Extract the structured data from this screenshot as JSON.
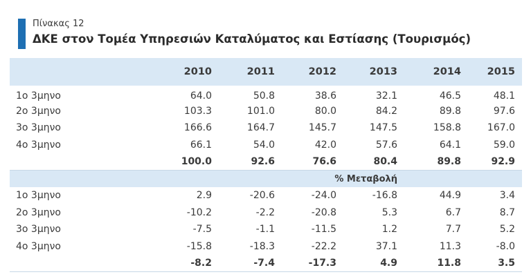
{
  "header": {
    "label": "Πίνακας 12",
    "title": "ΔΚΕ στον Τομέα Υπηρεσιών Καταλύματος και Εστίασης (Τουρισμός)"
  },
  "table": {
    "years": [
      "2010",
      "2011",
      "2012",
      "2013",
      "2014",
      "2015"
    ],
    "index_rows": [
      {
        "label": "1ο 3μηνο",
        "values": [
          "64.0",
          "50.8",
          "38.6",
          "32.1",
          "46.5",
          "48.1"
        ]
      },
      {
        "label": "2ο 3μηνο",
        "values": [
          "103.3",
          "101.0",
          "80.0",
          "84.2",
          "89.8",
          "97.6"
        ]
      },
      {
        "label": "3ο 3μηνο",
        "values": [
          "166.6",
          "164.7",
          "145.7",
          "147.5",
          "158.8",
          "167.0"
        ]
      },
      {
        "label": "4ο 3μηνο",
        "values": [
          "66.1",
          "54.0",
          "42.0",
          "57.6",
          "64.1",
          "59.0"
        ]
      }
    ],
    "index_total": [
      "100.0",
      "92.6",
      "76.6",
      "80.4",
      "89.8",
      "92.9"
    ],
    "change_section_label": "% Μεταβολή",
    "change_rows": [
      {
        "label": "1ο 3μηνο",
        "values": [
          "2.9",
          "-20.6",
          "-24.0",
          "-16.8",
          "44.9",
          "3.4"
        ]
      },
      {
        "label": "2ο 3μηνο",
        "values": [
          "-10.2",
          "-2.2",
          "-20.8",
          "5.3",
          "6.7",
          "8.7"
        ]
      },
      {
        "label": "3ο 3μηνο",
        "values": [
          "-7.5",
          "-1.1",
          "-11.5",
          "1.2",
          "7.7",
          "5.2"
        ]
      },
      {
        "label": "4ο 3μηνο",
        "values": [
          "-15.8",
          "-18.3",
          "-22.2",
          "37.1",
          "11.3",
          "-8.0"
        ]
      }
    ],
    "change_total": [
      "-8.2",
      "-7.4",
      "-17.3",
      "4.9",
      "11.8",
      "3.5"
    ]
  },
  "colors": {
    "accent": "#1e6fb3",
    "header_band": "#d9e8f5"
  }
}
